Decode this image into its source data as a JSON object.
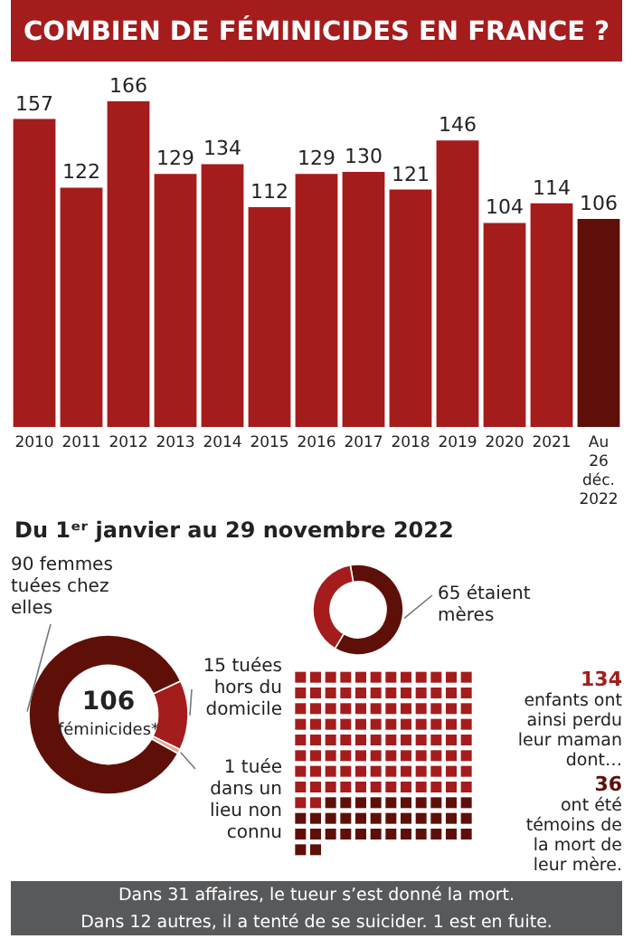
{
  "chart_data": [
    {
      "type": "bar",
      "title": "COMBIEN DE FÉMINICIDES EN FRANCE ?",
      "categories": [
        "2010",
        "2011",
        "2012",
        "2013",
        "2014",
        "2015",
        "2016",
        "2017",
        "2018",
        "2019",
        "2020",
        "2021",
        "Au 26 déc. 2022"
      ],
      "values": [
        157,
        122,
        166,
        129,
        134,
        112,
        129,
        130,
        121,
        146,
        104,
        114,
        106
      ],
      "colors": [
        "#a51c1c",
        "#a51c1c",
        "#a51c1c",
        "#a51c1c",
        "#a51c1c",
        "#a51c1c",
        "#a51c1c",
        "#a51c1c",
        "#a51c1c",
        "#a51c1c",
        "#a51c1c",
        "#a51c1c",
        "#5e1008"
      ],
      "data_labels": true
    },
    {
      "type": "donut",
      "title": "Du 1ᵉʳ janvier au 29 novembre 2022",
      "categories": [
        "15 tuées hors du domicile",
        "1 tuée dans un lieu non connu",
        "90 femmes tuées chez elles"
      ],
      "values": [
        15,
        1,
        90
      ],
      "colors": [
        "#a51c1c",
        "#eaa391",
        "#5e1008"
      ],
      "annotations": [
        "106",
        "féminicides*"
      ]
    },
    {
      "type": "donut",
      "categories": [
        "65 étaient mères",
        null
      ],
      "values": [
        65,
        41
      ],
      "colors": [
        "#5e1008",
        "#a51c1c"
      ]
    },
    {
      "type": "other",
      "categories": [
        "enfants ont ainsi perdu leur maman dont…",
        "ont été témoins de la mort de leur mère."
      ],
      "values": [
        134,
        36
      ],
      "colors": [
        "#a51c1c",
        "#5e1008"
      ],
      "data_labels": true,
      "annotations": [
        "Dans 31 affaires, le tueur s’est donné la mort.",
        "Dans 12 autres, il a tenté de se suicider. 1 est en fuite."
      ]
    }
  ]
}
